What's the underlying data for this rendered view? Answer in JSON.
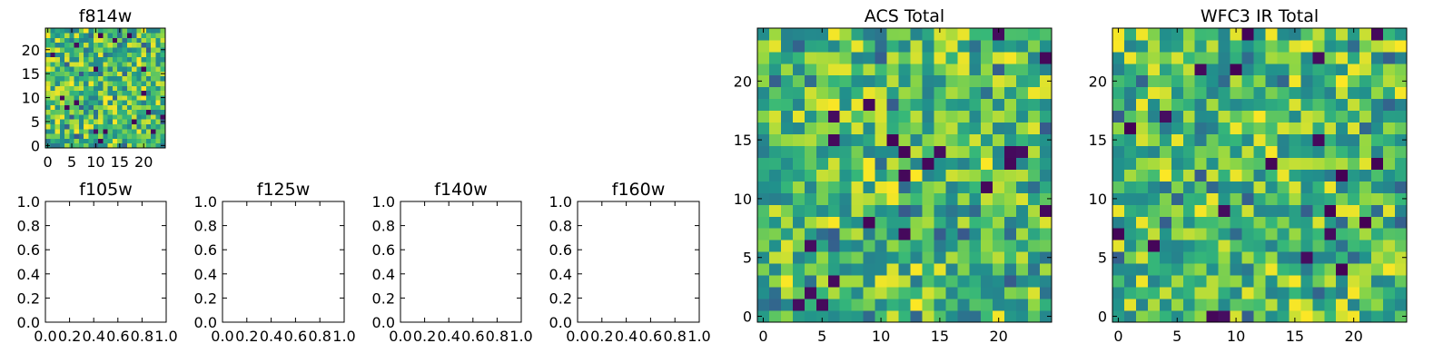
{
  "chart_data": [
    {
      "id": "f814w",
      "type": "heatmap",
      "title": "f814w",
      "grid_size": 25,
      "xticks": [
        0,
        5,
        10,
        15,
        20
      ],
      "yticks": [
        0,
        5,
        10,
        15,
        20
      ],
      "xtick_labels": [
        "0",
        "5",
        "10",
        "15",
        "20"
      ],
      "ytick_labels": [
        "0",
        "5",
        "10",
        "15",
        "20"
      ],
      "xlim": [
        -0.5,
        24.5
      ],
      "ylim": [
        -0.5,
        24.5
      ],
      "colormap": "viridis",
      "data_note": "25x25 random intensity field (values in 0-1)"
    },
    {
      "id": "f105w",
      "type": "heatmap",
      "title": "f105w",
      "empty": true,
      "xlim": [
        0,
        1
      ],
      "ylim": [
        0,
        1
      ],
      "xticks": [
        0.0,
        0.2,
        0.4,
        0.6,
        0.8,
        1.0
      ],
      "yticks": [
        0.0,
        0.2,
        0.4,
        0.6,
        0.8,
        1.0
      ],
      "xtick_labels": [
        "0.0",
        "0.2",
        "0.4",
        "0.6",
        "0.8",
        "1.0"
      ],
      "ytick_labels": [
        "0.0",
        "0.2",
        "0.4",
        "0.6",
        "0.8",
        "1.0"
      ]
    },
    {
      "id": "f125w",
      "type": "heatmap",
      "title": "f125w",
      "empty": true,
      "xlim": [
        0,
        1
      ],
      "ylim": [
        0,
        1
      ],
      "xticks": [
        0.0,
        0.2,
        0.4,
        0.6,
        0.8,
        1.0
      ],
      "yticks": [
        0.0,
        0.2,
        0.4,
        0.6,
        0.8,
        1.0
      ],
      "xtick_labels": [
        "0.0",
        "0.2",
        "0.4",
        "0.6",
        "0.8",
        "1.0"
      ],
      "ytick_labels": [
        "0.0",
        "0.2",
        "0.4",
        "0.6",
        "0.8",
        "1.0"
      ]
    },
    {
      "id": "f140w",
      "type": "heatmap",
      "title": "f140w",
      "empty": true,
      "xlim": [
        0,
        1
      ],
      "ylim": [
        0,
        1
      ],
      "xticks": [
        0.0,
        0.2,
        0.4,
        0.6,
        0.8,
        1.0
      ],
      "yticks": [
        0.0,
        0.2,
        0.4,
        0.6,
        0.8,
        1.0
      ],
      "xtick_labels": [
        "0.0",
        "0.2",
        "0.4",
        "0.6",
        "0.8",
        "1.0"
      ],
      "ytick_labels": [
        "0.0",
        "0.2",
        "0.4",
        "0.6",
        "0.8",
        "1.0"
      ]
    },
    {
      "id": "f160w",
      "type": "heatmap",
      "title": "f160w",
      "empty": true,
      "xlim": [
        0,
        1
      ],
      "ylim": [
        0,
        1
      ],
      "xticks": [
        0.0,
        0.2,
        0.4,
        0.6,
        0.8,
        1.0
      ],
      "yticks": [
        0.0,
        0.2,
        0.4,
        0.6,
        0.8,
        1.0
      ],
      "xtick_labels": [
        "0.0",
        "0.2",
        "0.4",
        "0.6",
        "0.8",
        "1.0"
      ],
      "ytick_labels": [
        "0.0",
        "0.2",
        "0.4",
        "0.6",
        "0.8",
        "1.0"
      ]
    },
    {
      "id": "acs_total",
      "type": "heatmap",
      "title": "ACS Total",
      "grid_size": 25,
      "xticks": [
        0,
        5,
        10,
        15,
        20
      ],
      "yticks": [
        0,
        5,
        10,
        15,
        20
      ],
      "xtick_labels": [
        "0",
        "5",
        "10",
        "15",
        "20"
      ],
      "ytick_labels": [
        "0",
        "5",
        "10",
        "15",
        "20"
      ],
      "xlim": [
        -0.5,
        24.5
      ],
      "ylim": [
        -0.5,
        24.5
      ],
      "colormap": "viridis",
      "data_note": "25x25 random intensity field (values in 0-1)"
    },
    {
      "id": "wfc3_ir_total",
      "type": "heatmap",
      "title": "WFC3 IR Total",
      "grid_size": 25,
      "xticks": [
        0,
        5,
        10,
        15,
        20
      ],
      "yticks": [
        0,
        5,
        10,
        15,
        20
      ],
      "xtick_labels": [
        "0",
        "5",
        "10",
        "15",
        "20"
      ],
      "ytick_labels": [
        "0",
        "5",
        "10",
        "15",
        "20"
      ],
      "xlim": [
        -0.5,
        24.5
      ],
      "ylim": [
        -0.5,
        24.5
      ],
      "colormap": "viridis",
      "data_note": "25x25 random intensity field (values in 0-1)"
    }
  ],
  "colors": {
    "axis": "#000000",
    "background": "#ffffff"
  }
}
